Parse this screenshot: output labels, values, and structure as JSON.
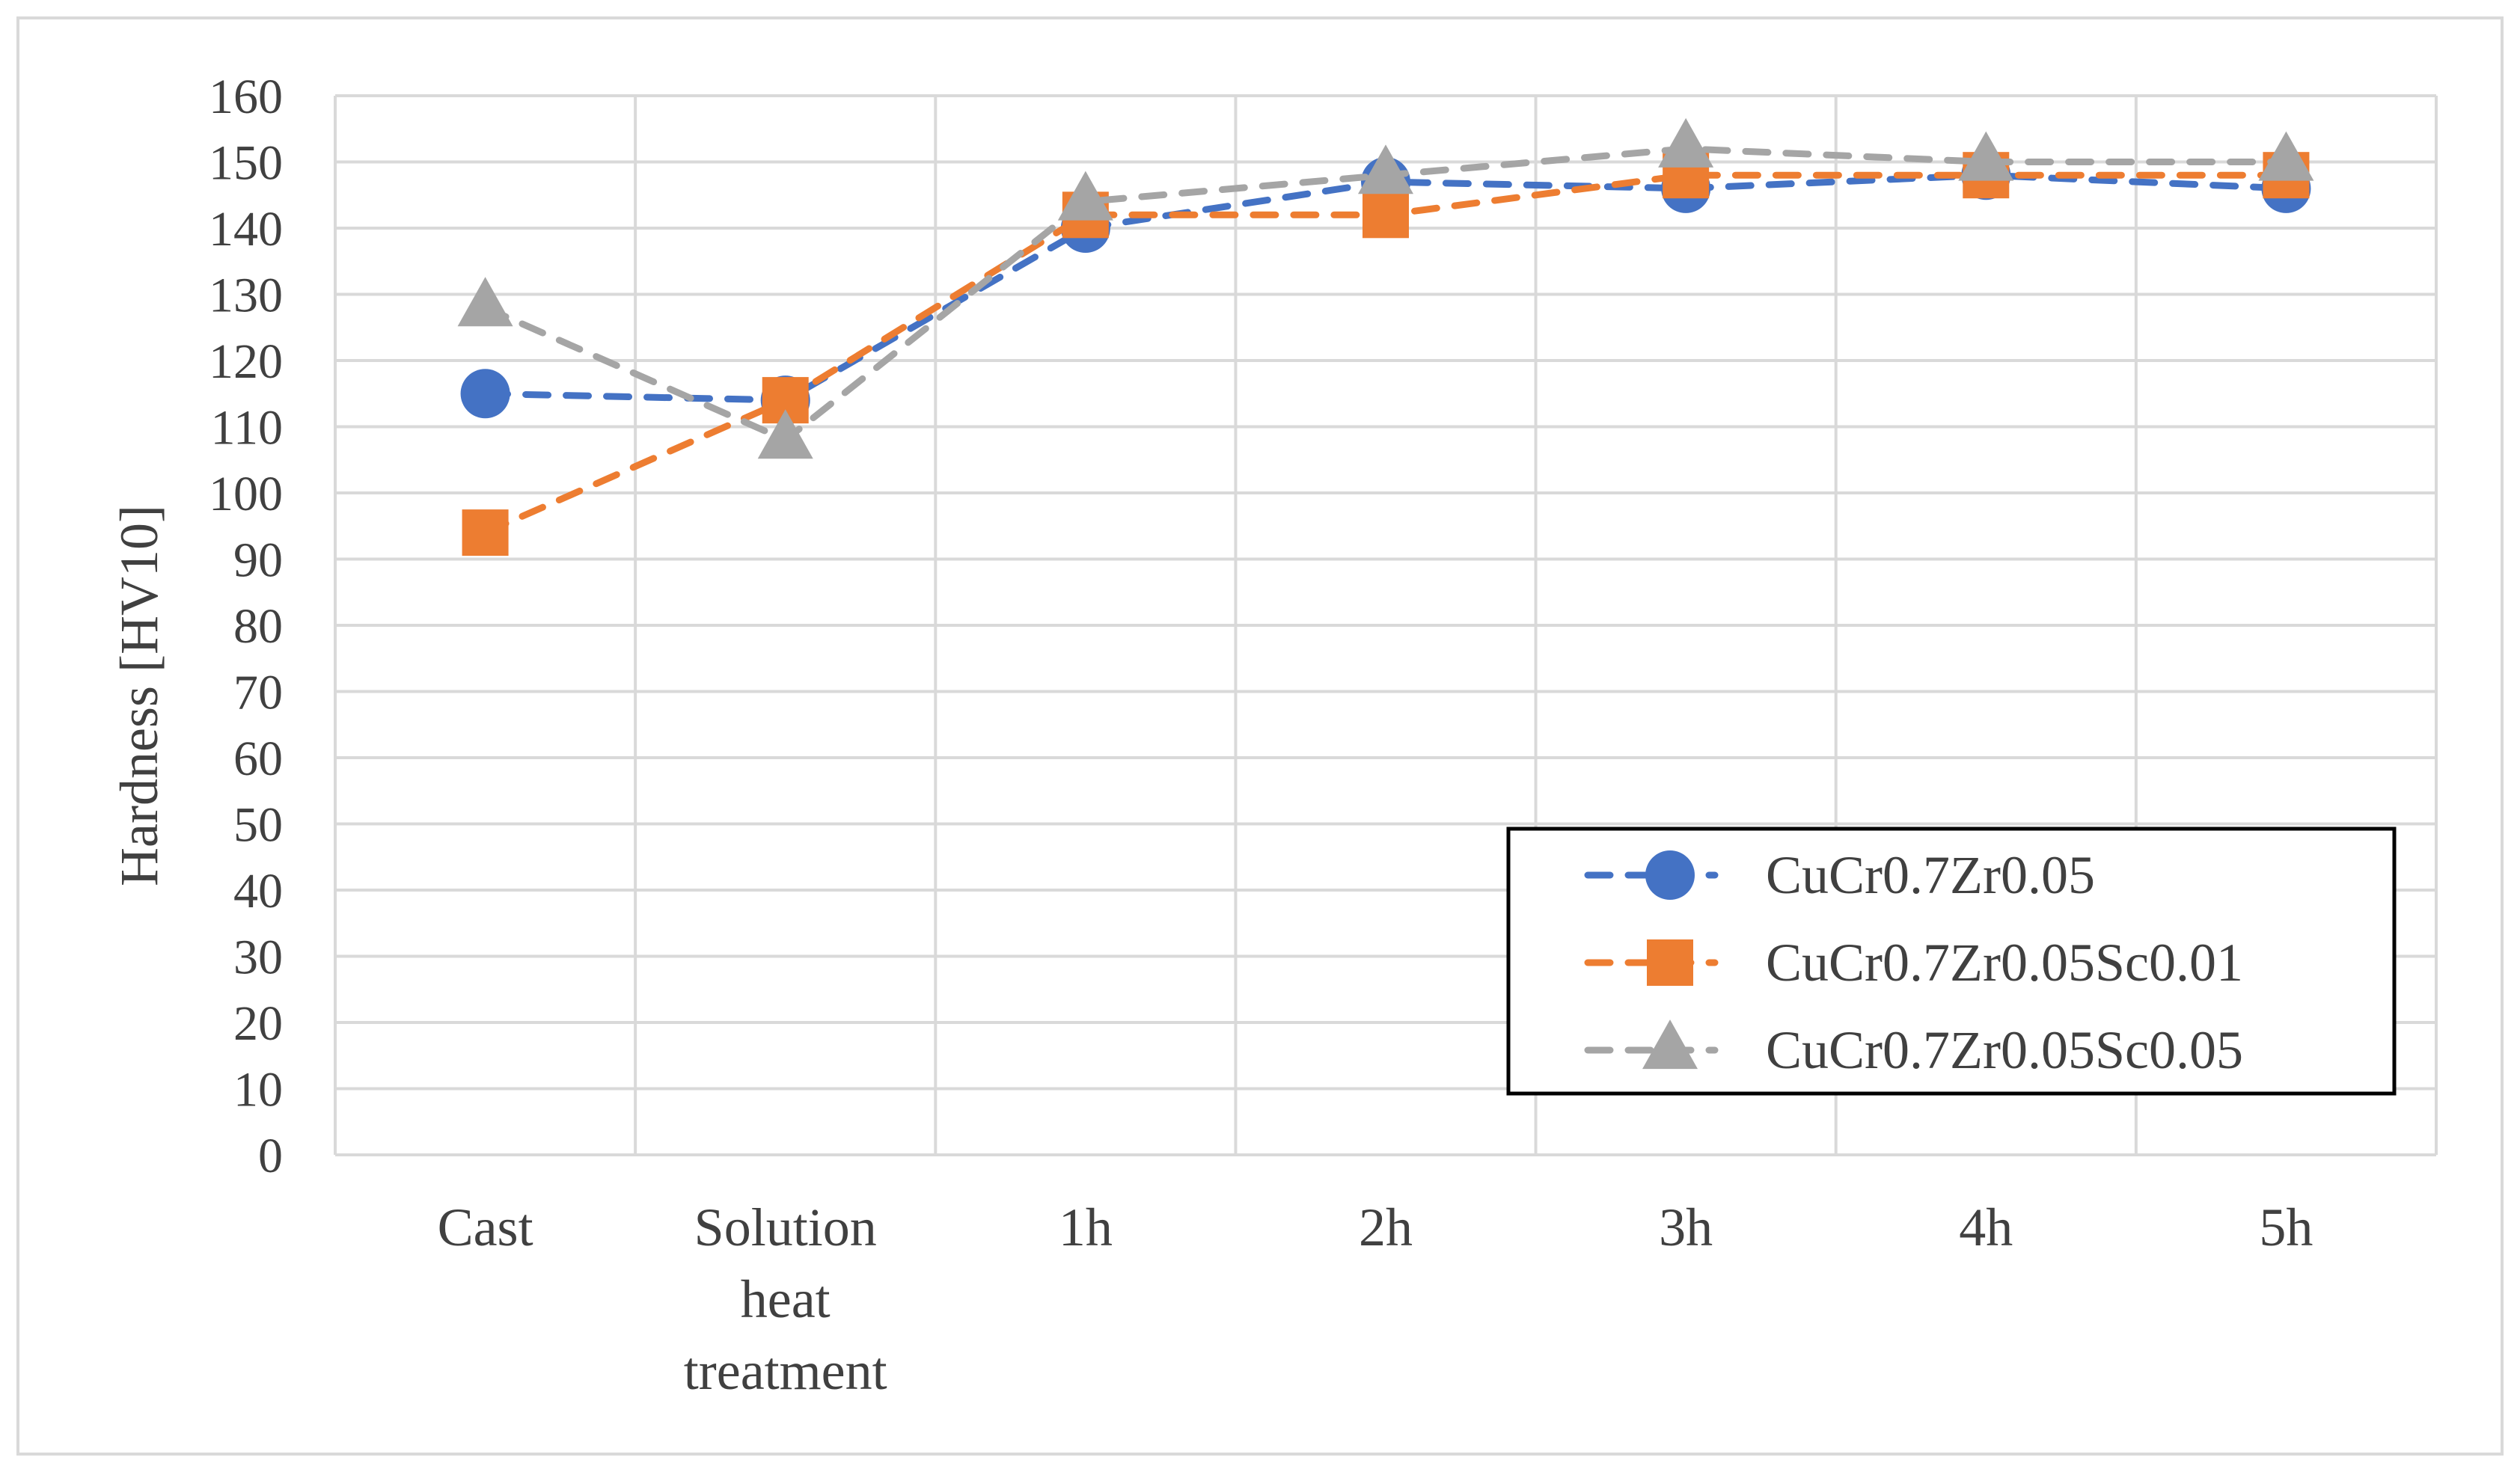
{
  "chart_data": {
    "type": "line",
    "title": "",
    "xlabel": "",
    "ylabel": "Hardness [HV10]",
    "ylim": [
      0,
      160
    ],
    "ytick_step": 10,
    "grid": true,
    "legend_position": "bottom-right",
    "categories": [
      "Cast",
      "Solution heat treatment",
      "1h",
      "2h",
      "3h",
      "4h",
      "5h"
    ],
    "category_lines": [
      [
        "Cast"
      ],
      [
        "Solution",
        "heat",
        "treatment"
      ],
      [
        "1h"
      ],
      [
        "2h"
      ],
      [
        "3h"
      ],
      [
        "4h"
      ],
      [
        "5h"
      ]
    ],
    "series": [
      {
        "name": "CuCr0.7Zr0.05",
        "marker": "circle",
        "color": "#4472C4",
        "values": [
          115,
          114,
          140,
          147,
          146,
          148,
          146
        ]
      },
      {
        "name": "CuCr0.7Zr0.05Sc0.01",
        "marker": "square",
        "color": "#ED7D31",
        "values": [
          94,
          114,
          142,
          142,
          148,
          148,
          148
        ]
      },
      {
        "name": "CuCr0.7Zr0.05Sc0.05",
        "marker": "triangle",
        "color": "#A5A5A5",
        "values": [
          128,
          108,
          144,
          148,
          152,
          150,
          150
        ]
      }
    ]
  }
}
